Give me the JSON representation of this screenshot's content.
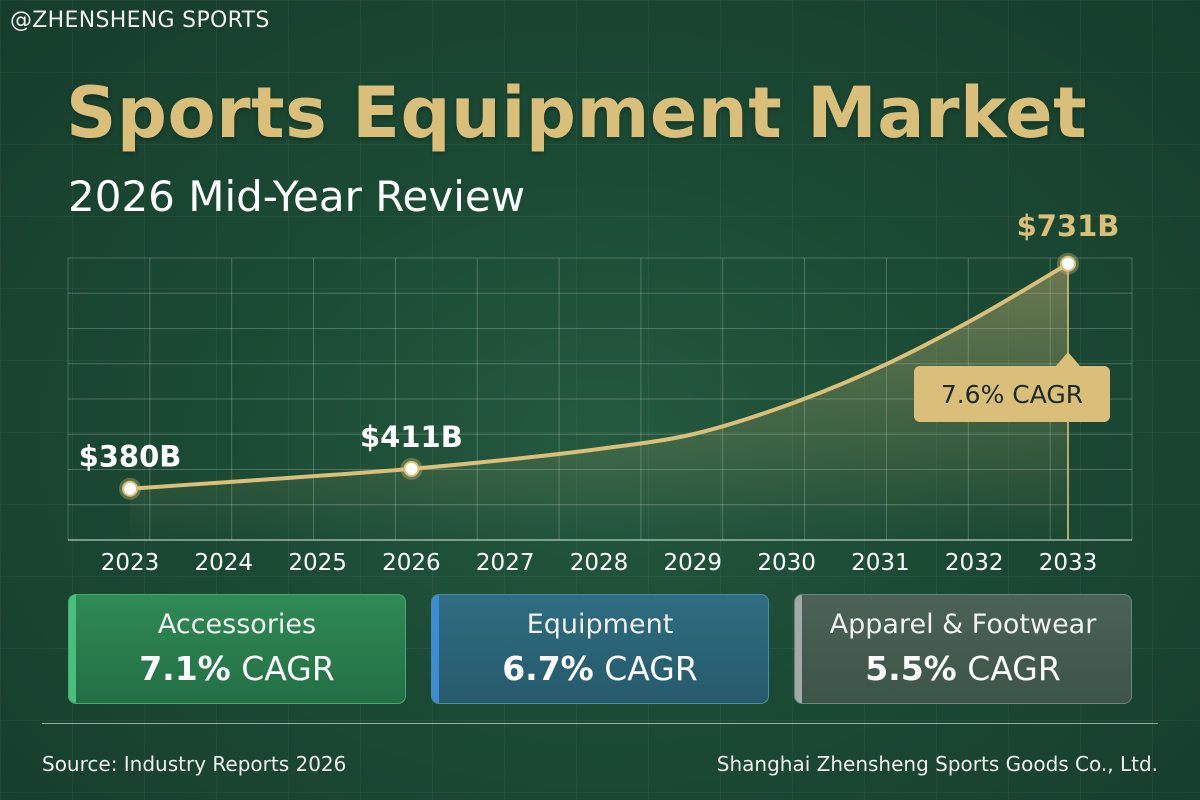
{
  "watermark": "@ZHENSHENG SPORTS",
  "header": {
    "title": "Sports Equipment Market",
    "subtitle": "2026 Mid-Year Review"
  },
  "colors": {
    "background": "#1b4a34",
    "gold": "#d9bf7a",
    "line": "#d9bf7a",
    "accessories": "#46c07a",
    "equipment": "#3e8bd6",
    "apparel": "#a3aaa6"
  },
  "chart_data": {
    "type": "line",
    "title": "",
    "xlabel": "",
    "ylabel": "",
    "x": [
      "2023",
      "2024",
      "2025",
      "2026",
      "2027",
      "2028",
      "2029",
      "2030",
      "2031",
      "2032",
      "2033"
    ],
    "ylim": [
      300,
      740
    ],
    "grid": true,
    "series": [
      {
        "values": [
          380,
          390,
          400,
          411,
          425,
          442,
          465,
          510,
          570,
          645,
          731
        ]
      }
    ],
    "labeled_points": [
      {
        "x": "2023",
        "label": "$380B"
      },
      {
        "x": "2026",
        "label": "$411B"
      },
      {
        "x": "2033",
        "label": "$731B"
      }
    ],
    "annotation": "7.6% CAGR"
  },
  "segments": [
    {
      "name": "Accessories",
      "rate": "7.1%",
      "unit": "CAGR"
    },
    {
      "name": "Equipment",
      "rate": "6.7%",
      "unit": "CAGR"
    },
    {
      "name": "Apparel & Footwear",
      "rate": "5.5%",
      "unit": "CAGR"
    }
  ],
  "footer": {
    "source": "Source: Industry Reports 2026",
    "company": "Shanghai Zhensheng Sports Goods Co., Ltd."
  }
}
